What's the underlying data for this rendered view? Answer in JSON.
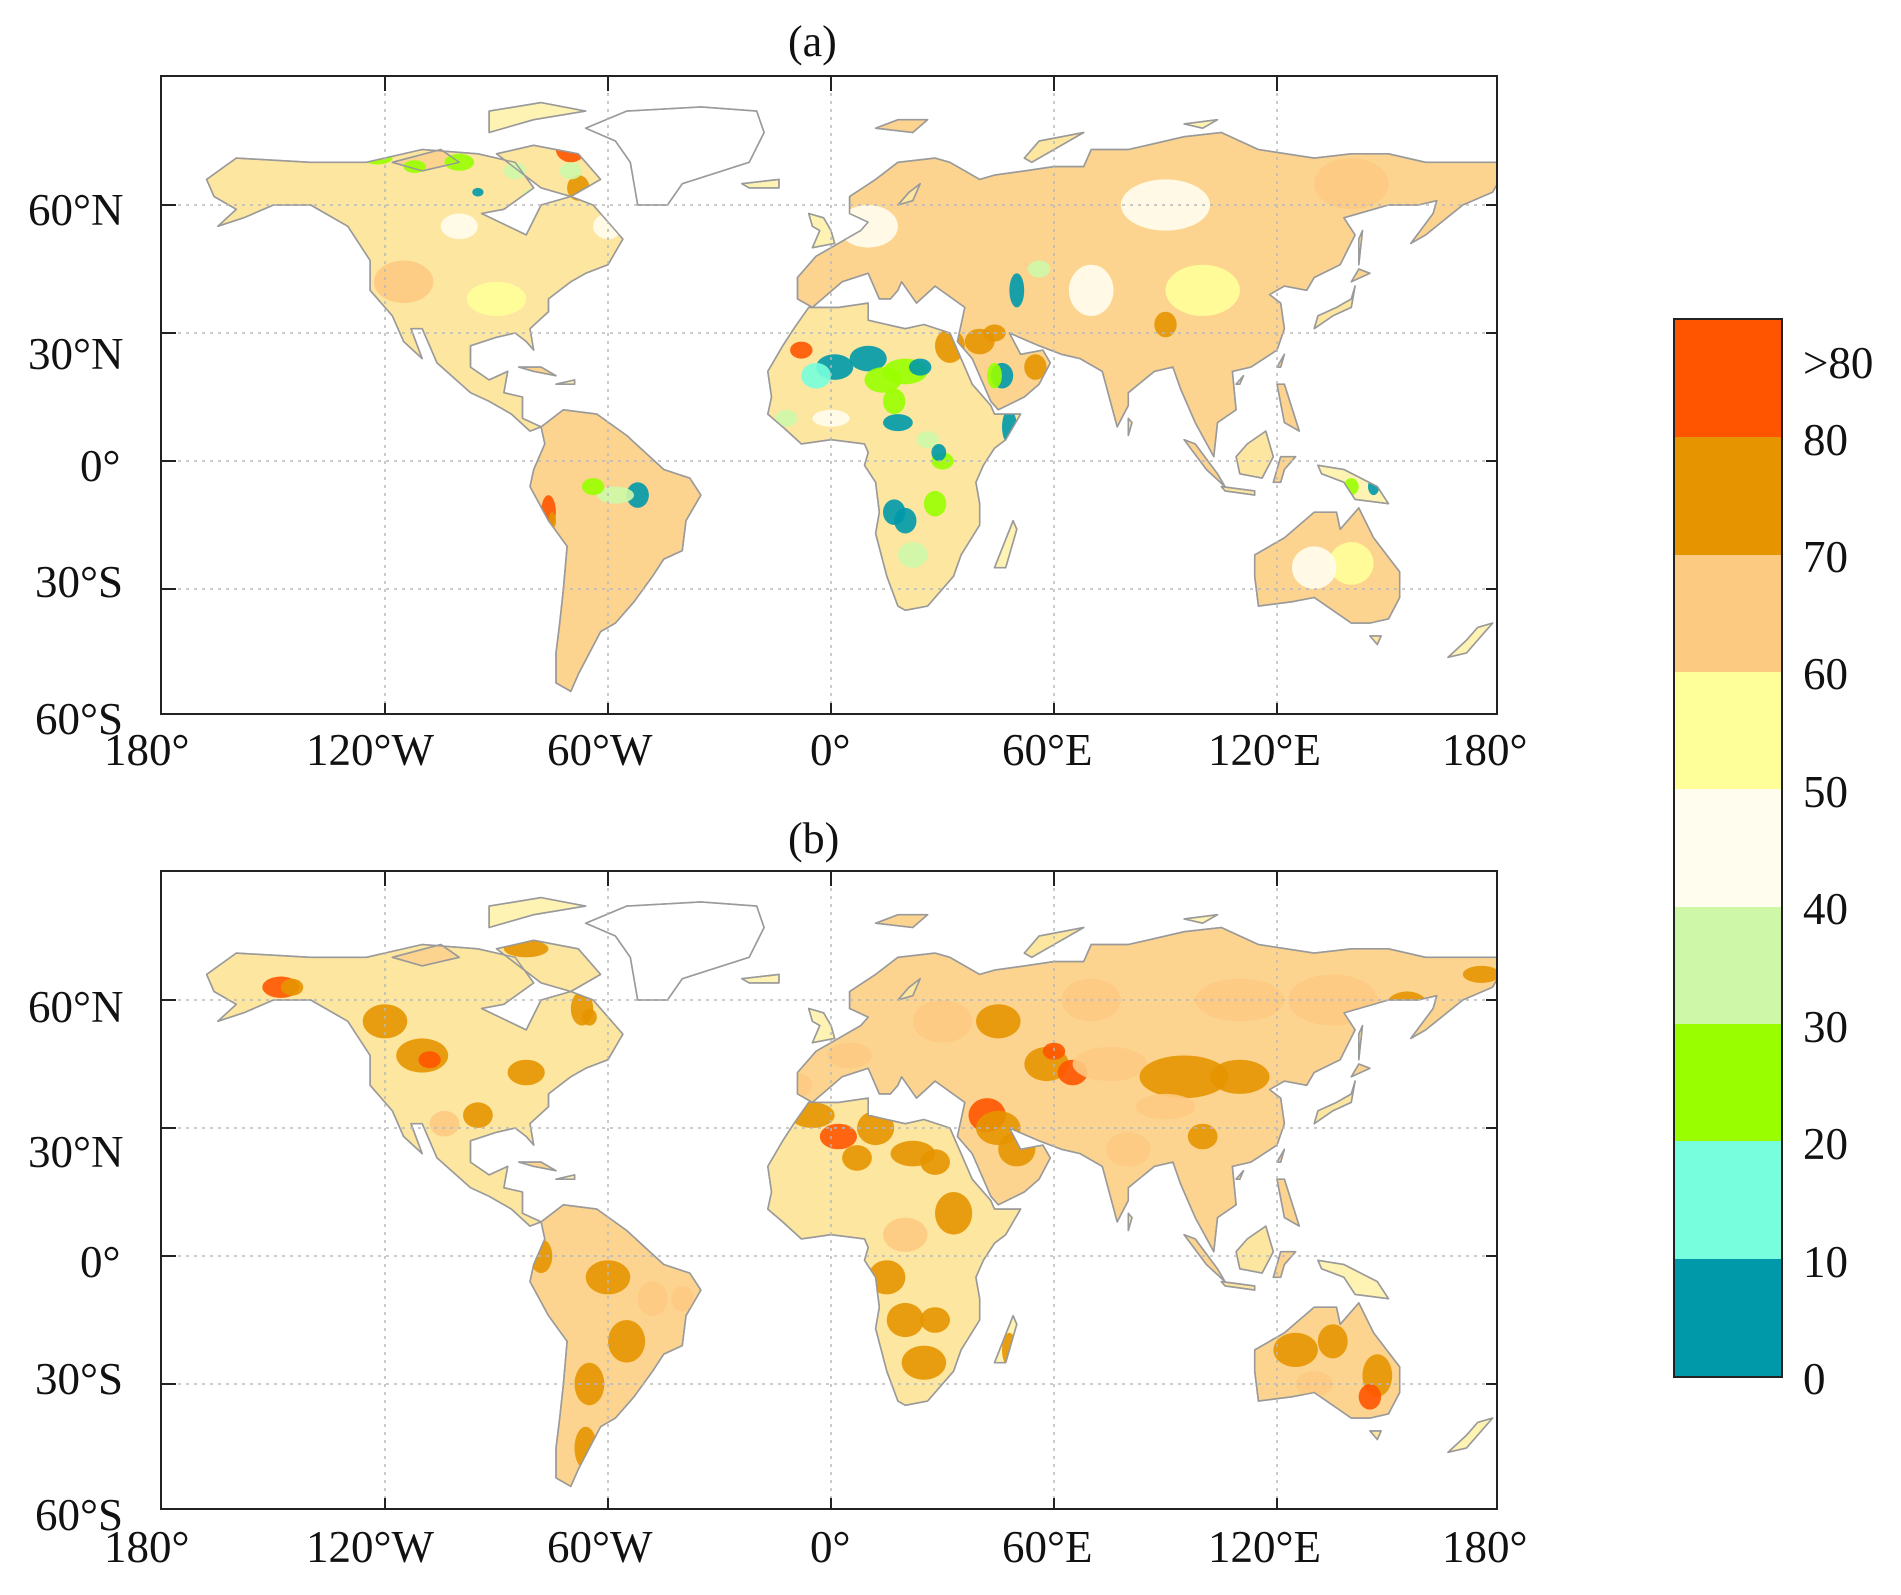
{
  "panels": [
    {
      "id": "a",
      "title": "(a)",
      "style": "low"
    },
    {
      "id": "b",
      "title": "(b)",
      "style": "high"
    }
  ],
  "axes": {
    "lat_labels": [
      "60°N",
      "30°N",
      "0°",
      "30°S",
      "60°S"
    ],
    "lon_labels": [
      "180°",
      "120°W",
      "60°W",
      "0°",
      "60°E",
      "120°E",
      "180°"
    ],
    "lon_range": [
      -180,
      180
    ],
    "lat_range": [
      -60,
      90
    ],
    "grid": true,
    "grid_style": "dotted"
  },
  "colorbar": {
    "labels": [
      ">80",
      "80",
      "70",
      "60",
      "50",
      "40",
      "30",
      "20",
      "10",
      "0"
    ],
    "colors": [
      "#ff5500",
      "#e69500",
      "#fdca82",
      "#ffff99",
      "#fffdee",
      "#cef8a8",
      "#99ff00",
      "#77ffdd",
      "#0099aa"
    ]
  },
  "colors": {
    "land_base": "#fde6a0",
    "coast": "#9a9a9a",
    "grid": "#b8b8b8"
  }
}
